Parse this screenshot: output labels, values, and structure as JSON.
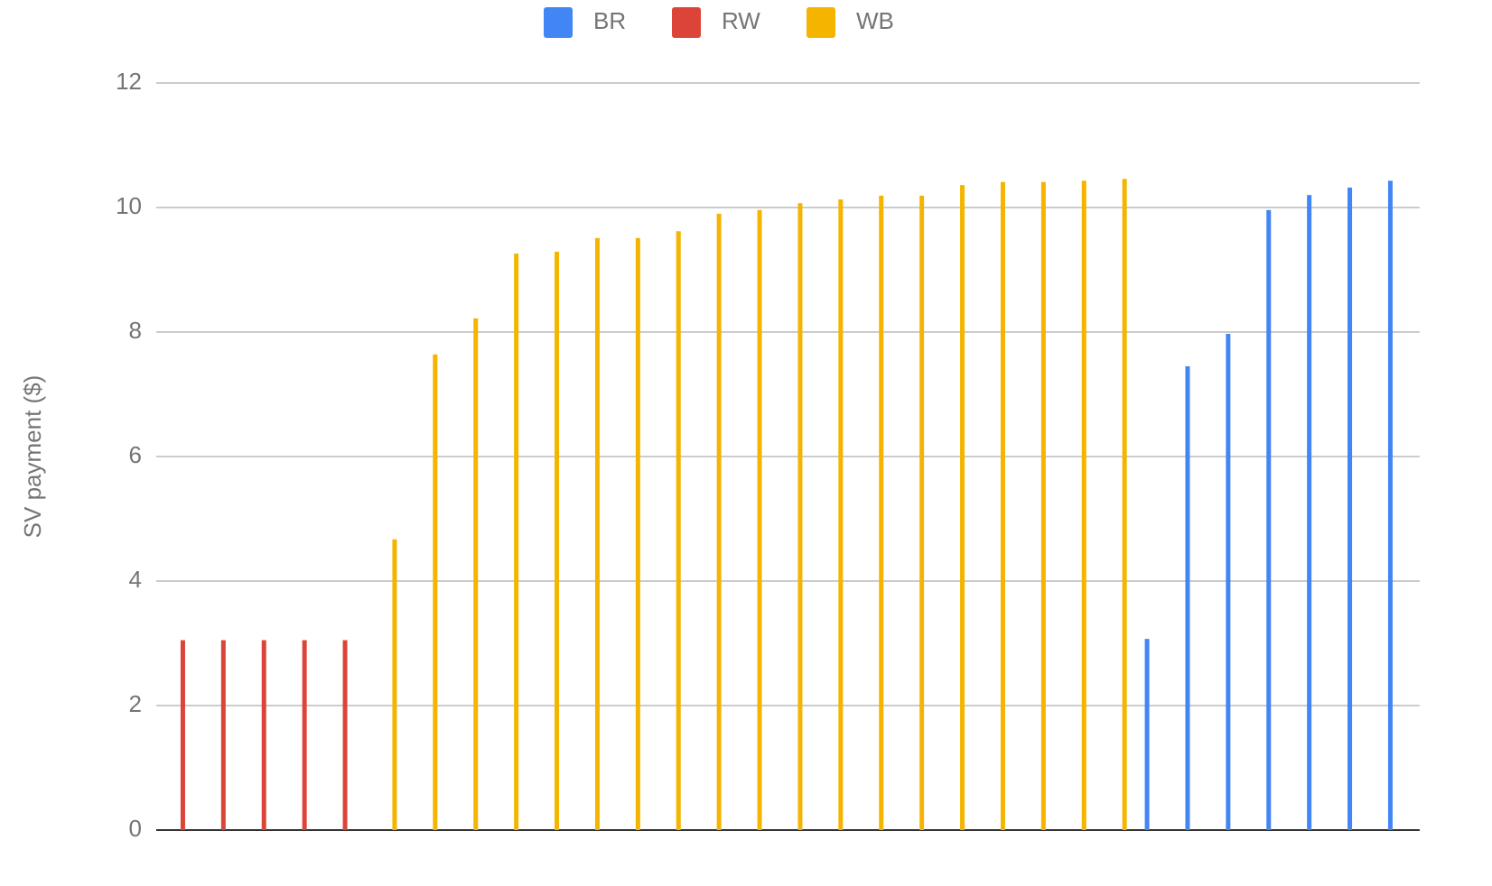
{
  "chart_data": {
    "type": "bar",
    "y_label": "SV payment ($)",
    "categories": [
      null,
      null,
      null,
      null,
      null,
      null,
      null,
      null,
      null,
      null,
      null,
      null,
      null,
      null,
      null,
      null,
      null,
      null,
      null,
      null,
      null,
      null,
      null,
      null,
      null,
      null,
      null,
      null,
      null,
      null,
      null
    ],
    "series": [
      {
        "name": "BR",
        "color": "#4285f4",
        "values": [
          null,
          null,
          null,
          null,
          null,
          null,
          null,
          null,
          null,
          null,
          null,
          null,
          null,
          null,
          null,
          null,
          null,
          null,
          null,
          null,
          null,
          null,
          null,
          null,
          3.07,
          7.45,
          7.97,
          9.96,
          10.2,
          10.32,
          10.43
        ]
      },
      {
        "name": "RW",
        "color": "#db4437",
        "values": [
          3.05,
          3.05,
          3.05,
          3.05,
          3.05,
          null,
          null,
          null,
          null,
          null,
          null,
          null,
          null,
          null,
          null,
          null,
          null,
          null,
          null,
          null,
          null,
          null,
          null,
          null,
          null,
          null,
          null,
          null,
          null,
          null,
          null
        ]
      },
      {
        "name": "WB",
        "color": "#f4b400",
        "values": [
          null,
          null,
          null,
          null,
          null,
          4.67,
          7.64,
          8.22,
          9.26,
          9.29,
          9.51,
          9.51,
          9.62,
          9.9,
          9.96,
          10.07,
          10.13,
          10.19,
          10.19,
          10.36,
          10.41,
          10.41,
          10.43,
          10.46,
          null,
          null,
          null,
          null,
          null,
          null,
          null
        ]
      }
    ],
    "ylim": [
      0,
      12
    ],
    "yticks": [
      0,
      2,
      4,
      6,
      8,
      10,
      12
    ],
    "grid": true,
    "legend": "top"
  }
}
